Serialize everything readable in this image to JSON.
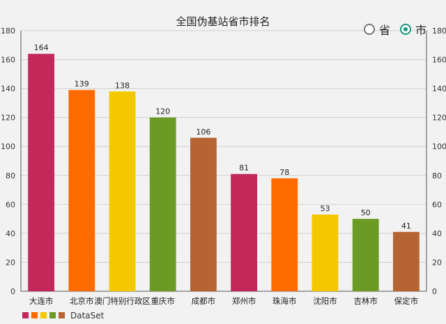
{
  "chart_data": {
    "type": "bar",
    "title": "全国伪基站省市排名",
    "categories": [
      "大连市",
      "北京市",
      "澳门特别行政区",
      "重庆市",
      "成都市",
      "郑州市",
      "珠海市",
      "沈阳市",
      "吉林市",
      "保定市"
    ],
    "values": [
      164,
      139,
      138,
      120,
      106,
      81,
      78,
      53,
      50,
      41
    ],
    "colors": [
      "#c2285a",
      "#ff6b00",
      "#f4c800",
      "#6b9b24",
      "#b76434",
      "#c2285a",
      "#ff6b00",
      "#f4c800",
      "#6b9b24",
      "#b76434"
    ],
    "ylim": [
      0,
      180
    ],
    "yticks": [
      0,
      20,
      40,
      60,
      80,
      100,
      120,
      140,
      160,
      180
    ],
    "grid": true,
    "legend": {
      "position": "bottom-left",
      "label": "DataSet",
      "colors": [
        "#c2285a",
        "#ff6b00",
        "#f4c800",
        "#6b9b24",
        "#b76434"
      ]
    }
  },
  "toggle": {
    "options": [
      {
        "label": "省",
        "selected": false
      },
      {
        "label": "市",
        "selected": true
      }
    ],
    "accent": "#14967e"
  }
}
